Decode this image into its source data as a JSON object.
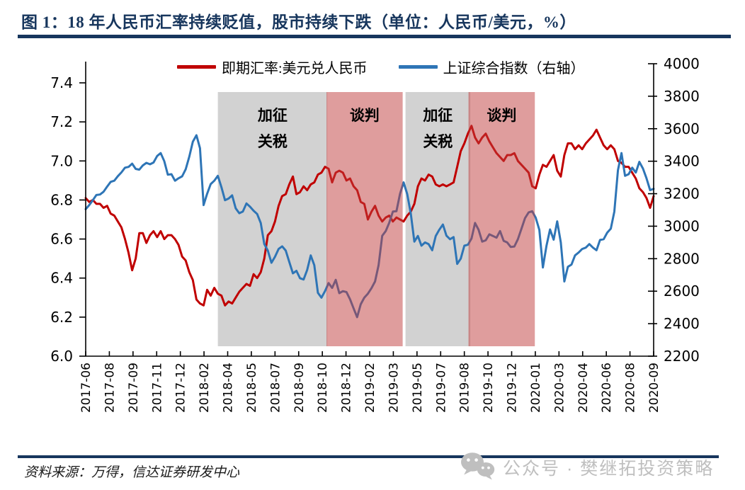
{
  "title": "图 1：18 年人民币汇率持续贬值，股市持续下跌（单位：人民币/美元，%）",
  "legend": [
    {
      "label": "即期汇率:美元兑人民币",
      "color": "#C00000"
    },
    {
      "label": "上证综合指数（右轴）",
      "color": "#2E75B6"
    }
  ],
  "footer": {
    "source": "资料来源：万得，信达证券研发中心",
    "watermark": "公众号 · 樊继拓投资策略"
  },
  "colors": {
    "accent_navy": "#17365D",
    "usdcny_red": "#C00000",
    "sse_blue": "#2E75B6",
    "gray_band": "#D2D2D2",
    "pink_band": "#C03C3C",
    "pink_band_opacity": 0.5,
    "axis_black": "#000000",
    "watermark_gray": "#BFBFBF"
  },
  "chart_data": {
    "type": "line",
    "title": "18 年人民币汇率持续贬值，股市持续下跌",
    "x_start": "2017-06",
    "x_end": "2020-09",
    "points_per_month": 4,
    "x_ticks": [
      "2017-06",
      "2017-08",
      "2017-09",
      "2017-11",
      "2017-12",
      "2018-02",
      "2018-04",
      "2018-05",
      "2018-07",
      "2018-09",
      "2018-10",
      "2018-12",
      "2019-02",
      "2019-03",
      "2019-05",
      "2019-07",
      "2019-08",
      "2019-10",
      "2019-12",
      "2020-01",
      "2020-03",
      "2020-04",
      "2020-06",
      "2020-08",
      "2020-09"
    ],
    "left_axis": {
      "min": 6.0,
      "max": 7.4,
      "step": 0.2,
      "ticks": [
        "6.0",
        "6.2",
        "6.4",
        "6.6",
        "6.8",
        "7.0",
        "7.2",
        "7.4"
      ]
    },
    "right_axis": {
      "min": 2200,
      "max": 4000,
      "step": 200,
      "ticks": [
        "2200",
        "2400",
        "2600",
        "2800",
        "3000",
        "3200",
        "3400",
        "3600",
        "3800",
        "4000"
      ]
    },
    "legend_position": "top",
    "grid": false,
    "series": [
      {
        "name": "即期汇率:美元兑人民币",
        "axis": "left",
        "color": "#C00000",
        "values": [
          6.81,
          6.79,
          6.8,
          6.78,
          6.78,
          6.76,
          6.77,
          6.73,
          6.72,
          6.69,
          6.66,
          6.6,
          6.53,
          6.44,
          6.5,
          6.63,
          6.63,
          6.58,
          6.62,
          6.64,
          6.61,
          6.64,
          6.6,
          6.62,
          6.62,
          6.6,
          6.57,
          6.51,
          6.49,
          6.43,
          6.39,
          6.29,
          6.27,
          6.26,
          6.34,
          6.31,
          6.35,
          6.32,
          6.31,
          6.26,
          6.28,
          6.27,
          6.3,
          6.33,
          6.35,
          6.37,
          6.36,
          6.42,
          6.4,
          6.43,
          6.5,
          6.62,
          6.64,
          6.69,
          6.77,
          6.82,
          6.83,
          6.88,
          6.92,
          6.83,
          6.84,
          6.87,
          6.85,
          6.88,
          6.89,
          6.93,
          6.94,
          6.97,
          6.96,
          6.89,
          6.94,
          6.95,
          6.94,
          6.9,
          6.91,
          6.87,
          6.85,
          6.79,
          6.78,
          6.7,
          6.74,
          6.77,
          6.72,
          6.69,
          6.71,
          6.72,
          6.69,
          6.71,
          6.7,
          6.69,
          6.72,
          6.74,
          6.78,
          6.87,
          6.91,
          6.9,
          6.93,
          6.92,
          6.88,
          6.87,
          6.88,
          6.87,
          6.88,
          6.89,
          6.97,
          7.05,
          7.09,
          7.14,
          7.18,
          7.12,
          7.09,
          7.12,
          7.14,
          7.1,
          7.07,
          7.04,
          7.02,
          7.0,
          7.03,
          7.03,
          7.04,
          7.0,
          6.98,
          6.96,
          6.94,
          6.87,
          6.86,
          6.93,
          6.98,
          6.97,
          7.0,
          7.03,
          6.95,
          6.92,
          7.03,
          7.09,
          7.09,
          7.06,
          7.08,
          7.06,
          7.09,
          7.11,
          7.13,
          7.16,
          7.12,
          7.08,
          7.06,
          7.08,
          7.06,
          7.0,
          6.99,
          6.97,
          6.97,
          6.94,
          6.91,
          6.86,
          6.84,
          6.81,
          6.76,
          6.82
        ]
      },
      {
        "name": "上证综合指数（右轴）",
        "axis": "right",
        "color": "#2E75B6",
        "values": [
          3105,
          3130,
          3160,
          3192,
          3195,
          3212,
          3244,
          3273,
          3280,
          3308,
          3331,
          3360,
          3365,
          3385,
          3353,
          3348,
          3374,
          3390,
          3381,
          3392,
          3432,
          3450,
          3400,
          3317,
          3320,
          3280,
          3295,
          3307,
          3350,
          3428,
          3520,
          3560,
          3480,
          3130,
          3200,
          3259,
          3280,
          3310,
          3240,
          3160,
          3170,
          3190,
          3110,
          3080,
          3090,
          3140,
          3120,
          3095,
          3075,
          3020,
          2890,
          2850,
          2775,
          2812,
          2860,
          2876,
          2850,
          2780,
          2710,
          2725,
          2680,
          2672,
          2730,
          2820,
          2760,
          2590,
          2560,
          2600,
          2650,
          2620,
          2670,
          2588,
          2600,
          2595,
          2550,
          2494,
          2440,
          2520,
          2560,
          2585,
          2618,
          2660,
          2760,
          2941,
          2970,
          3022,
          3090,
          3092,
          3200,
          3270,
          3198,
          3080,
          2905,
          2940,
          2880,
          2900,
          2890,
          2852,
          2940,
          2979,
          3010,
          2942,
          2920,
          2933,
          2768,
          2800,
          2880,
          2886,
          2924,
          3020,
          2978,
          2905,
          2913,
          2950,
          2940,
          2929,
          2970,
          2910,
          2900,
          2872,
          2875,
          2920,
          2985,
          3050,
          3085,
          3092,
          3052,
          2977,
          2746,
          2880,
          2980,
          2917,
          3030,
          2900,
          2660,
          2750,
          2764,
          2820,
          2838,
          2860,
          2868,
          2890,
          2868,
          2852,
          2915,
          2920,
          2960,
          2985,
          3090,
          3345,
          3450,
          3310,
          3320,
          3360,
          3330,
          3396,
          3355,
          3295,
          3222,
          3230
        ]
      }
    ],
    "regions": [
      {
        "name": "tariff-band-1",
        "style": "gray",
        "from": 0.2327,
        "to": 0.4254,
        "label_lines": [
          "加征",
          "关税"
        ]
      },
      {
        "name": "negotiation-band-1",
        "style": "pink",
        "from": 0.424,
        "to": 0.5581,
        "label_lines": [
          "谈判"
        ]
      },
      {
        "name": "tariff-band-2",
        "style": "gray",
        "from": 0.5631,
        "to": 0.6771,
        "label_lines": [
          "加征",
          "关税"
        ]
      },
      {
        "name": "negotiation-band-2",
        "style": "pink",
        "from": 0.674,
        "to": 0.7908,
        "label_lines": [
          "谈判"
        ]
      }
    ]
  }
}
